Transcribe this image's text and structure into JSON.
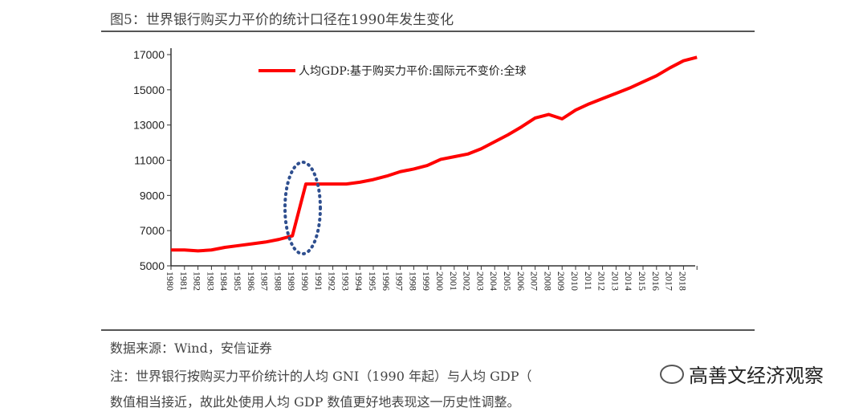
{
  "title": "图5：世界银行购买力平价的统计口径在1990年发生变化",
  "source": "数据来源：Wind，安信证券",
  "note_line1": "注：世界银行按购买力平价统计的人均 GNI（1990 年起）与人均 GDP（",
  "note_line2": "数值相当接近，故此处使用人均 GDP 数值更好地表现这一历史性调整。",
  "watermark": "高善文经济观察",
  "chart_data": {
    "type": "line",
    "title": "",
    "xlabel": "",
    "ylabel": "",
    "ylim": [
      5000,
      17000
    ],
    "yticks": [
      5000,
      7000,
      9000,
      11000,
      13000,
      15000,
      17000
    ],
    "grid": false,
    "legend_position": "top",
    "annotation": "dotted ellipse around 1989-1990 jump",
    "x": [
      1980,
      1981,
      1982,
      1983,
      1984,
      1985,
      1986,
      1987,
      1988,
      1989,
      1990,
      1991,
      1992,
      1993,
      1994,
      1995,
      1996,
      1997,
      1998,
      1999,
      2000,
      2001,
      2002,
      2003,
      2004,
      2005,
      2006,
      2007,
      2008,
      2009,
      2010,
      2011,
      2012,
      2013,
      2014,
      2015,
      2016,
      2017,
      2018,
      2019
    ],
    "xtick_labels": [
      "1980",
      "1981",
      "1982",
      "1983",
      "1984",
      "1985",
      "1986",
      "1987",
      "1988",
      "1989",
      "1990",
      "1991",
      "1992",
      "1993",
      "1994",
      "1995",
      "1996",
      "1997",
      "1998",
      "1999",
      "2000",
      "2001",
      "2002",
      "2003",
      "2004",
      "2005",
      "2006",
      "2007",
      "2008",
      "2009",
      "2010",
      "2011",
      "2012",
      "2013",
      "2014",
      "2015",
      "2016",
      "2017",
      "2018"
    ],
    "series": [
      {
        "name": "人均GDP:基于购买力平价:国际元不变价:全球",
        "color": "#ff0000",
        "values": [
          5900,
          5900,
          5850,
          5900,
          6050,
          6150,
          6250,
          6350,
          6500,
          6700,
          9650,
          9650,
          9650,
          9650,
          9750,
          9900,
          10100,
          10350,
          10500,
          10700,
          11050,
          11200,
          11350,
          11650,
          12050,
          12450,
          12900,
          13400,
          13600,
          13350,
          13850,
          14200,
          14500,
          14800,
          15100,
          15450,
          15800,
          16250,
          16650,
          16850
        ]
      }
    ],
    "ellipse_color": "#2f4f8f"
  }
}
